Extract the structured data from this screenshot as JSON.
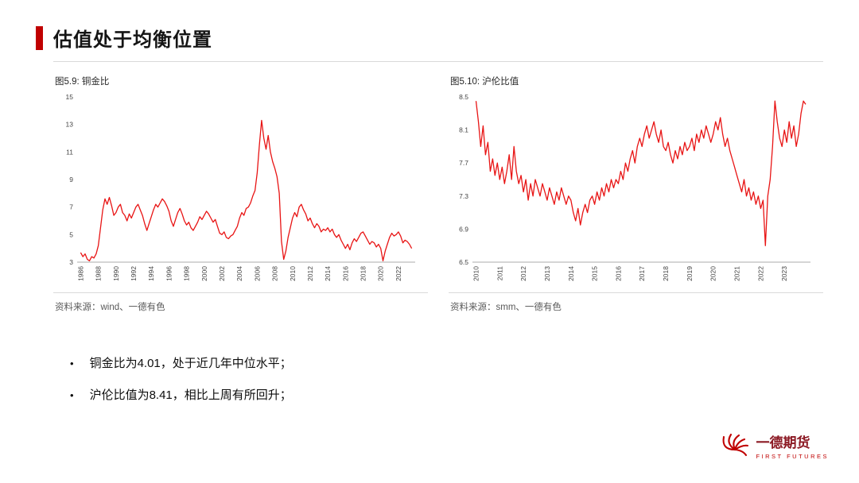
{
  "page": {
    "title": "估值处于均衡位置",
    "accent_color": "#c00000",
    "line_color": "#e81414"
  },
  "figures": [
    {
      "caption": "图5.9: 铜金比",
      "source": "资料来源：wind、一德有色"
    },
    {
      "caption": "图5.10: 沪伦比值",
      "source": "资料来源：smm、一德有色"
    }
  ],
  "bullets": [
    {
      "marker": "•",
      "text": "铜金比为4.01，处于近几年中位水平；"
    },
    {
      "marker": "•",
      "text": "沪伦比值为8.41，相比上周有所回升；"
    }
  ],
  "logo": {
    "name": "一德期货",
    "subtitle": "FIRST FUTURES"
  },
  "chart_data": [
    {
      "type": "line",
      "title": "图5.9: 铜金比",
      "series_name": "铜金比",
      "line_color": "#e81414",
      "grid": false,
      "legend": "none",
      "current_value": 4.01,
      "xlim": [
        1985.6,
        2023.9
      ],
      "ylim": [
        3,
        15
      ],
      "y_ticks": [
        3,
        5,
        7,
        9,
        11,
        13,
        15
      ],
      "x_ticks": [
        1986,
        1988,
        1990,
        1992,
        1994,
        1996,
        1998,
        2000,
        2002,
        2004,
        2006,
        2008,
        2010,
        2012,
        2014,
        2016,
        2018,
        2020,
        2022
      ],
      "x_start": 1986,
      "x_step": 0.25,
      "values": [
        3.7,
        3.4,
        3.6,
        3.2,
        3.1,
        3.4,
        3.3,
        3.6,
        4.2,
        5.5,
        6.8,
        7.6,
        7.2,
        7.7,
        7.1,
        6.4,
        6.6,
        7.0,
        7.2,
        6.6,
        6.4,
        6.0,
        6.5,
        6.2,
        6.6,
        7.0,
        7.2,
        6.8,
        6.4,
        5.8,
        5.3,
        5.8,
        6.3,
        6.8,
        7.2,
        7.0,
        7.3,
        7.6,
        7.4,
        7.1,
        6.7,
        6.0,
        5.6,
        6.1,
        6.6,
        6.9,
        6.5,
        6.0,
        5.7,
        5.9,
        5.5,
        5.3,
        5.6,
        5.9,
        6.3,
        6.1,
        6.4,
        6.7,
        6.5,
        6.2,
        5.9,
        6.1,
        5.6,
        5.1,
        5.0,
        5.2,
        4.8,
        4.7,
        4.9,
        5.0,
        5.3,
        5.6,
        6.2,
        6.6,
        6.4,
        6.9,
        7.0,
        7.3,
        7.8,
        8.2,
        9.5,
        11.5,
        13.3,
        12.0,
        11.2,
        12.2,
        11.0,
        10.3,
        9.8,
        9.2,
        8.0,
        4.5,
        3.2,
        3.8,
        4.8,
        5.5,
        6.2,
        6.6,
        6.3,
        7.0,
        7.2,
        6.8,
        6.5,
        6.0,
        6.2,
        5.8,
        5.5,
        5.8,
        5.6,
        5.2,
        5.4,
        5.3,
        5.5,
        5.2,
        5.4,
        5.0,
        4.8,
        5.0,
        4.6,
        4.3,
        4.0,
        4.3,
        3.9,
        4.4,
        4.7,
        4.5,
        4.8,
        5.1,
        5.2,
        4.9,
        4.6,
        4.3,
        4.5,
        4.4,
        4.1,
        4.3,
        4.0,
        3.1,
        3.8,
        4.3,
        4.8,
        5.1,
        4.9,
        5.0,
        5.2,
        4.9,
        4.4,
        4.6,
        4.5,
        4.3,
        4.0
      ]
    },
    {
      "type": "line",
      "title": "图5.10: 沪伦比值",
      "series_name": "沪伦比值",
      "line_color": "#e81414",
      "grid": false,
      "legend": "none",
      "current_value": 8.41,
      "xlim": [
        2009.85,
        2024.1
      ],
      "ylim": [
        6.5,
        8.5
      ],
      "y_ticks": [
        6.5,
        6.9,
        7.3,
        7.7,
        8.1,
        8.5
      ],
      "x_ticks": [
        2010,
        2011,
        2012,
        2013,
        2014,
        2015,
        2016,
        2017,
        2018,
        2019,
        2020,
        2021,
        2022,
        2023
      ],
      "x_start": 2010,
      "x_step": 0.1,
      "values": [
        8.45,
        8.2,
        7.9,
        8.15,
        7.8,
        7.95,
        7.6,
        7.75,
        7.55,
        7.7,
        7.5,
        7.65,
        7.45,
        7.6,
        7.8,
        7.5,
        7.9,
        7.6,
        7.45,
        7.55,
        7.35,
        7.5,
        7.25,
        7.45,
        7.3,
        7.5,
        7.4,
        7.3,
        7.45,
        7.35,
        7.25,
        7.4,
        7.3,
        7.2,
        7.35,
        7.25,
        7.4,
        7.3,
        7.2,
        7.3,
        7.25,
        7.1,
        7.0,
        7.15,
        6.95,
        7.1,
        7.2,
        7.1,
        7.25,
        7.3,
        7.2,
        7.35,
        7.25,
        7.4,
        7.3,
        7.45,
        7.35,
        7.5,
        7.4,
        7.5,
        7.45,
        7.6,
        7.5,
        7.7,
        7.6,
        7.75,
        7.85,
        7.7,
        7.9,
        8.0,
        7.9,
        8.05,
        8.15,
        8.0,
        8.1,
        8.2,
        8.05,
        7.95,
        8.1,
        7.9,
        7.85,
        7.95,
        7.8,
        7.7,
        7.85,
        7.75,
        7.9,
        7.8,
        7.95,
        7.85,
        7.9,
        8.0,
        7.85,
        8.05,
        7.95,
        8.1,
        8.0,
        8.15,
        8.05,
        7.95,
        8.05,
        8.2,
        8.1,
        8.25,
        8.05,
        7.9,
        8.0,
        7.85,
        7.75,
        7.65,
        7.55,
        7.45,
        7.35,
        7.5,
        7.3,
        7.4,
        7.25,
        7.35,
        7.2,
        7.3,
        7.15,
        7.25,
        6.7,
        7.3,
        7.5,
        7.9,
        8.45,
        8.2,
        8.0,
        7.9,
        8.1,
        7.95,
        8.2,
        8.0,
        8.15,
        7.9,
        8.05,
        8.3,
        8.45,
        8.41
      ]
    }
  ]
}
